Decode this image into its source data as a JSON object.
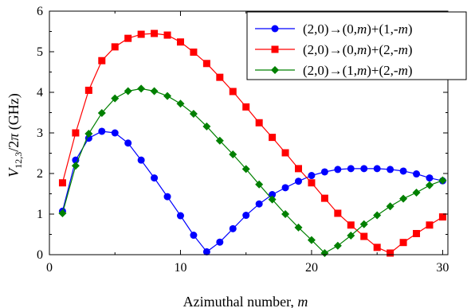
{
  "chart_data": {
    "type": "line",
    "xlabel_main": "Azimuthal number, ",
    "xlabel_var": "m",
    "ylabel_main": "V",
    "ylabel_sub": "12,3",
    "ylabel_rest": "/2",
    "ylabel_pi": "π",
    "ylabel_unit": " (GHz)",
    "xlim": [
      0,
      30.4
    ],
    "ylim": [
      0,
      6
    ],
    "xticks": [
      0,
      10,
      20,
      30
    ],
    "yticks": [
      0,
      1,
      2,
      3,
      4,
      5,
      6
    ],
    "legend_position": "top-right",
    "series": [
      {
        "legend_left": "(2,0)→(0,",
        "legend_m1": "m",
        "legend_mid": ")+(1,-",
        "legend_m2": "m",
        "legend_right": ")",
        "color": "#0000ff",
        "marker": "circle",
        "x": [
          1,
          2,
          3,
          4,
          5,
          6,
          7,
          8,
          9,
          10,
          11,
          12,
          13,
          14,
          15,
          16,
          17,
          18,
          19,
          20,
          21,
          22,
          23,
          24,
          25,
          26,
          27,
          28,
          29,
          30
        ],
        "values": [
          1.07,
          2.33,
          2.87,
          3.04,
          3.0,
          2.75,
          2.33,
          1.89,
          1.43,
          0.96,
          0.48,
          0.07,
          0.31,
          0.64,
          0.97,
          1.25,
          1.48,
          1.65,
          1.81,
          1.95,
          2.04,
          2.1,
          2.12,
          2.12,
          2.12,
          2.1,
          2.06,
          1.99,
          1.89,
          1.82
        ]
      },
      {
        "legend_left": "(2,0)→(0,",
        "legend_m1": "m",
        "legend_mid": ")+(2,-",
        "legend_m2": "m",
        "legend_right": ")",
        "color": "#ff0000",
        "marker": "square",
        "x": [
          1,
          2,
          3,
          4,
          5,
          6,
          7,
          8,
          9,
          10,
          11,
          12,
          13,
          14,
          15,
          16,
          17,
          18,
          19,
          20,
          21,
          22,
          23,
          24,
          25,
          26,
          27,
          28,
          29,
          30
        ],
        "values": [
          1.77,
          3.0,
          4.05,
          4.78,
          5.12,
          5.33,
          5.43,
          5.45,
          5.41,
          5.24,
          4.99,
          4.71,
          4.37,
          4.02,
          3.64,
          3.25,
          2.89,
          2.51,
          2.12,
          1.77,
          1.39,
          1.02,
          0.73,
          0.45,
          0.18,
          0.04,
          0.3,
          0.52,
          0.73,
          0.93
        ]
      },
      {
        "legend_left": "(2,0)→(1,",
        "legend_m1": "m",
        "legend_mid": ")+(2,-",
        "legend_m2": "m",
        "legend_right": ")",
        "color": "#008000",
        "marker": "diamond",
        "x": [
          1,
          2,
          3,
          4,
          5,
          6,
          7,
          8,
          9,
          10,
          11,
          12,
          13,
          14,
          15,
          16,
          17,
          18,
          19,
          20,
          21,
          22,
          23,
          24,
          25,
          26,
          27,
          28,
          29,
          30
        ],
        "values": [
          1.02,
          2.19,
          2.98,
          3.49,
          3.85,
          4.03,
          4.09,
          4.03,
          3.91,
          3.72,
          3.47,
          3.16,
          2.81,
          2.47,
          2.11,
          1.73,
          1.36,
          1.0,
          0.67,
          0.36,
          0.04,
          0.22,
          0.47,
          0.75,
          0.97,
          1.19,
          1.38,
          1.53,
          1.71,
          1.83
        ]
      }
    ]
  }
}
